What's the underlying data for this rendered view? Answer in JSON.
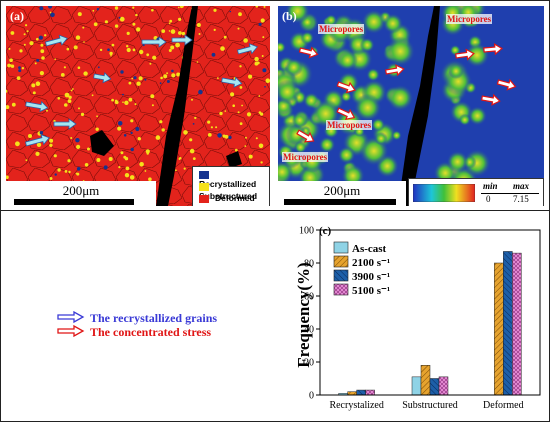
{
  "panel_a": {
    "label": "(a)",
    "scale": "200μm",
    "legend": [
      {
        "label": "Recrystallized",
        "color": "#16338f"
      },
      {
        "label": "Substructured",
        "color": "#f5e11a"
      },
      {
        "label": "Deformed",
        "color": "#e3231c"
      }
    ]
  },
  "panel_b": {
    "label": "(b)",
    "scale": "200μm",
    "micropores": [
      "Micropores",
      "Micropores",
      "Micropores",
      "Micropores"
    ],
    "colorbar": {
      "min_label": "min",
      "min_value": "0",
      "max_label": "max",
      "max_value": "7.15"
    }
  },
  "arrow_legend": {
    "recrystallized": "The recrystallized grains",
    "stress": "The concentrated stress",
    "recrystallized_color": "#3a3ad6",
    "stress_color": "#e01515"
  },
  "chart_data": {
    "type": "bar",
    "panel_label": "(c)",
    "ylabel": "Frequency(%)",
    "ylim": [
      0,
      100
    ],
    "yticks": [
      0,
      20,
      40,
      60,
      80,
      100
    ],
    "categories": [
      "Recrystalized",
      "Substructured",
      "Deformed"
    ],
    "series": [
      {
        "name": "As-cast",
        "color": "#8fd3e6",
        "pattern": "solid",
        "values": [
          1,
          11,
          0
        ]
      },
      {
        "name": "2100 s⁻¹",
        "color": "#e6a32e",
        "pattern": "hatch",
        "values": [
          2,
          18,
          80
        ]
      },
      {
        "name": "3900 s⁻¹",
        "color": "#1d5fa8",
        "pattern": "hatch",
        "values": [
          3,
          10,
          87
        ]
      },
      {
        "name": "5100 s⁻¹",
        "color": "#e88ed6",
        "pattern": "cross",
        "values": [
          3,
          11,
          86
        ]
      }
    ]
  }
}
